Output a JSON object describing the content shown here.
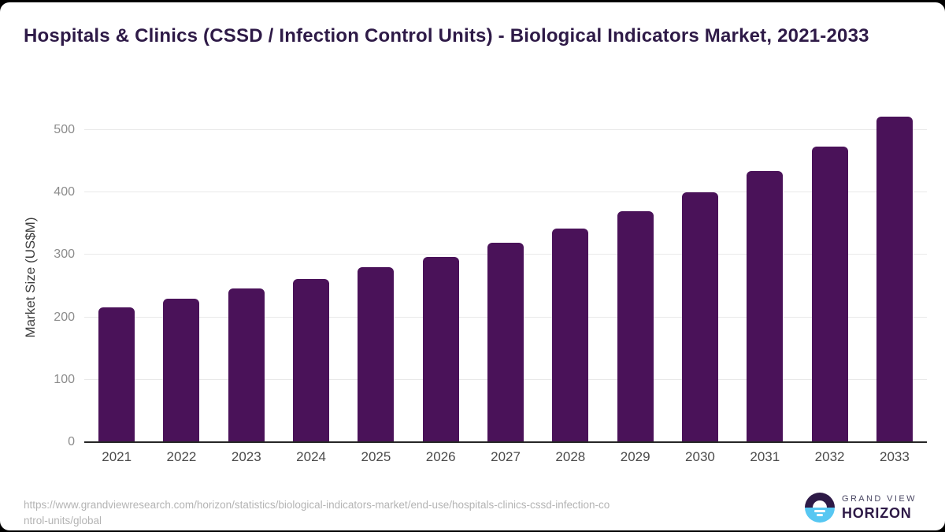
{
  "page": {
    "outer_background": "#000000",
    "card_background": "#ffffff"
  },
  "header": {
    "title": "Hospitals & Clinics (CSSD / Infection Control Units) - Biological Indicators Market, 2021-2033",
    "title_color": "#2e1a47"
  },
  "chart_data": {
    "type": "bar",
    "title": "Hospitals & Clinics (CSSD / Infection Control Units) - Biological Indicators Market, 2021-2033",
    "categories": [
      "2021",
      "2022",
      "2023",
      "2024",
      "2025",
      "2026",
      "2027",
      "2028",
      "2029",
      "2030",
      "2031",
      "2032",
      "2033"
    ],
    "values": [
      216,
      230,
      246,
      262,
      280,
      297,
      319,
      342,
      370,
      400,
      434,
      474,
      521
    ],
    "xlabel": "",
    "ylabel": "Market Size (US$M)",
    "ylim": [
      0,
      528
    ],
    "yticks": [
      0,
      100,
      200,
      300,
      400,
      500
    ],
    "bar_color": "#4a1259",
    "gridline_color": "#e9e9e9",
    "axis_line_color": "#262626",
    "grid": "horizontal",
    "legend_position": "none"
  },
  "footer": {
    "source_url_line1": "https://www.grandviewresearch.com/horizon/statistics/biological-indicators-market/end-use/hospitals-clinics-cssd-infection-co",
    "source_url_line2": "ntrol-units/global",
    "logo": {
      "text_top": "GRAND VIEW",
      "text_bottom": "HORIZON",
      "dark_color": "#2e1a47",
      "blue_color": "#57c7f2"
    }
  }
}
